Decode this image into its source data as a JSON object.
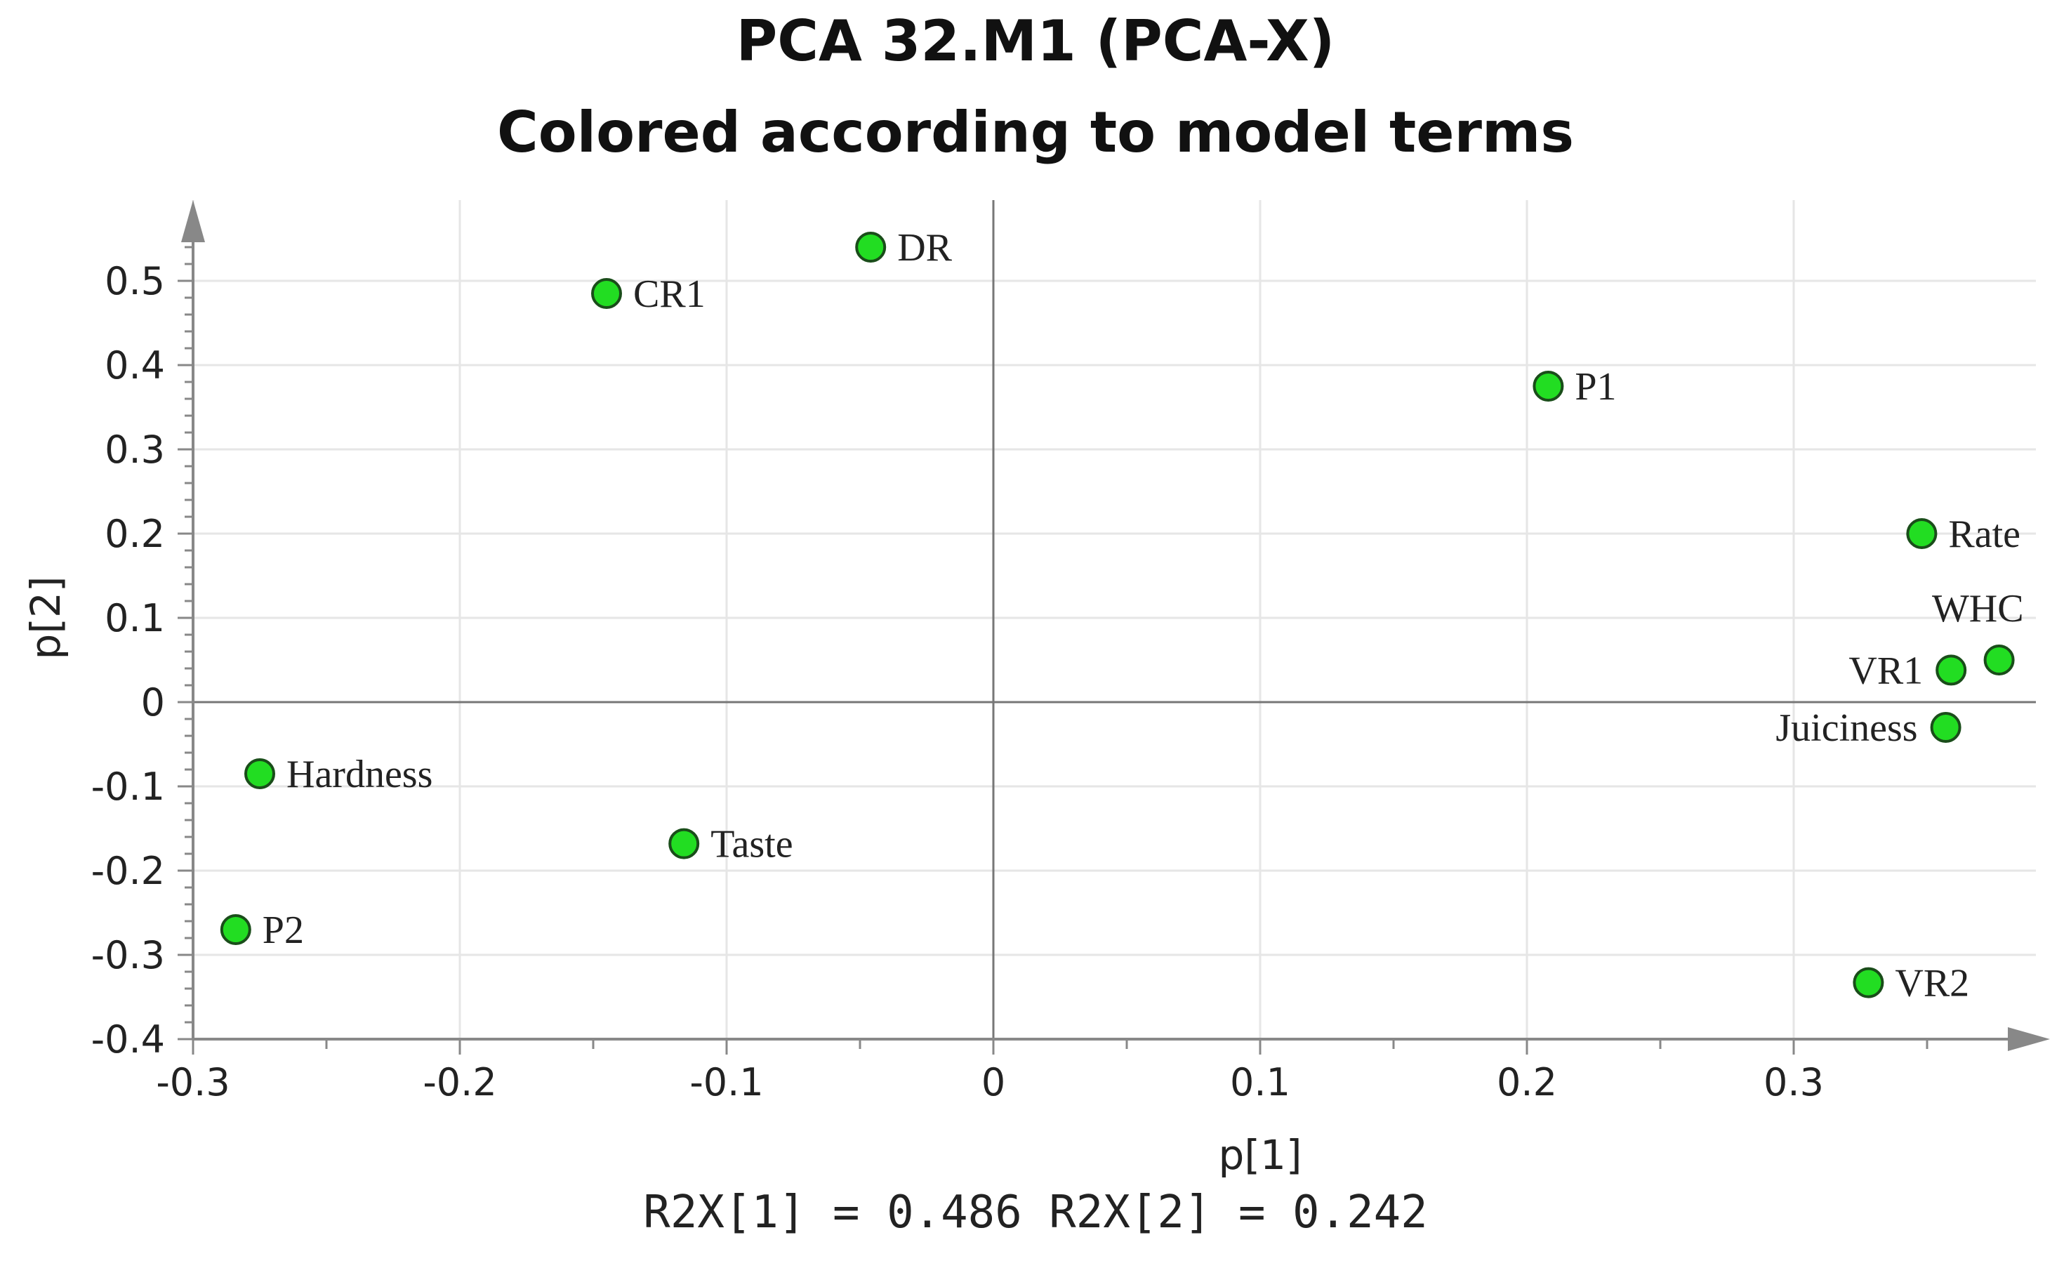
{
  "chart_data": {
    "type": "scatter",
    "title": "PCA 32.M1 (PCA-X)",
    "subtitle": "Colored according to model terms",
    "xlabel": "p[1]",
    "ylabel": "p[2]",
    "footer": "R2X[1] = 0.486 R2X[2] = 0.242",
    "xlim": [
      -0.3,
      0.4
    ],
    "ylim": [
      -0.4,
      0.5
    ],
    "x_ticks": [
      -0.3,
      -0.2,
      -0.1,
      0,
      0.1,
      0.2,
      0.3
    ],
    "x_tick_labels": [
      "-0.3",
      "-0.2",
      "-0.1",
      "0",
      "0.1",
      "0.2",
      "0.3"
    ],
    "y_ticks": [
      0.5,
      0.4,
      0.3,
      0.2,
      0.1,
      0,
      -0.1,
      -0.2,
      -0.3,
      -0.4
    ],
    "y_tick_labels": [
      "0.5",
      "0.4",
      "0.3",
      "0.2",
      "0.1",
      "0",
      "-0.1",
      "-0.2",
      "-0.3",
      "-0.4"
    ],
    "grid": true,
    "marker_color": "#22dd22",
    "points": [
      {
        "label": "DR",
        "x": -0.046,
        "y": 0.54,
        "label_side": "right"
      },
      {
        "label": "CR1",
        "x": -0.145,
        "y": 0.485,
        "label_side": "right"
      },
      {
        "label": "P1",
        "x": 0.208,
        "y": 0.375,
        "label_side": "right"
      },
      {
        "label": "Rate",
        "x": 0.348,
        "y": 0.2,
        "label_side": "right"
      },
      {
        "label": "WHC",
        "x": 0.377,
        "y": 0.05,
        "label_side": "above-left"
      },
      {
        "label": "VR1",
        "x": 0.359,
        "y": 0.038,
        "label_side": "left"
      },
      {
        "label": "Juiciness",
        "x": 0.357,
        "y": -0.03,
        "label_side": "left"
      },
      {
        "label": "Hardness",
        "x": -0.275,
        "y": -0.085,
        "label_side": "right"
      },
      {
        "label": "Taste",
        "x": -0.116,
        "y": -0.168,
        "label_side": "right"
      },
      {
        "label": "P2",
        "x": -0.284,
        "y": -0.27,
        "label_side": "right"
      },
      {
        "label": "VR2",
        "x": 0.328,
        "y": -0.333,
        "label_side": "right"
      }
    ]
  }
}
